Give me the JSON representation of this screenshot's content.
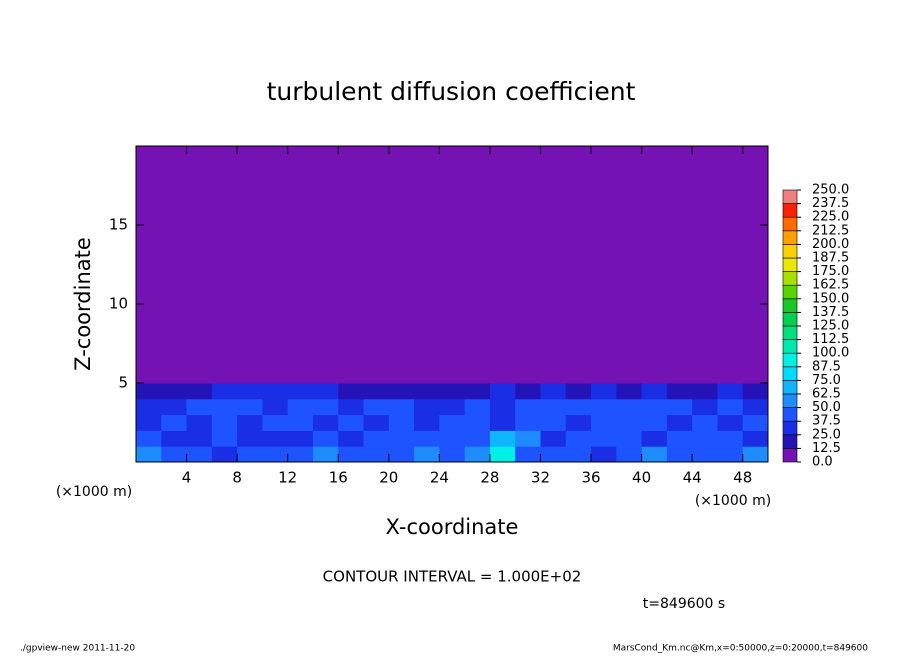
{
  "chart_data": {
    "type": "heatmap",
    "title": "turbulent diffusion coefficient",
    "x_label": "X-coordinate",
    "y_label": "Z-coordinate",
    "x_unit_labels": [
      "(×1000 m)",
      "(×1000 m)"
    ],
    "xlim": [
      0,
      50
    ],
    "ylim": [
      0,
      20
    ],
    "xticks": [
      4,
      8,
      12,
      16,
      20,
      24,
      28,
      32,
      36,
      40,
      44,
      48
    ],
    "yticks": [
      5,
      10,
      15
    ],
    "x": [
      1,
      3,
      5,
      7,
      9,
      11,
      13,
      15,
      17,
      19,
      21,
      23,
      25,
      27,
      29,
      31,
      33,
      35,
      37,
      39,
      41,
      43,
      45,
      47,
      49
    ],
    "y": [
      0.5,
      1.5,
      2.5,
      3.5,
      4.5,
      5.5
    ],
    "z": [
      [
        50,
        45,
        40,
        35,
        40,
        45,
        40,
        50,
        45,
        40,
        45,
        50,
        45,
        55,
        90,
        40,
        45,
        40,
        35,
        40,
        50,
        45,
        40,
        45,
        50
      ],
      [
        40,
        35,
        30,
        40,
        35,
        30,
        35,
        40,
        35,
        40,
        45,
        40,
        40,
        45,
        70,
        50,
        35,
        40,
        45,
        40,
        35,
        40,
        45,
        40,
        35
      ],
      [
        35,
        40,
        30,
        45,
        35,
        40,
        40,
        35,
        40,
        35,
        40,
        35,
        40,
        40,
        30,
        45,
        40,
        35,
        40,
        45,
        40,
        35,
        40,
        35,
        40
      ],
      [
        30,
        35,
        40,
        40,
        45,
        35,
        45,
        40,
        35,
        45,
        40,
        35,
        35,
        40,
        35,
        40,
        40,
        40,
        45,
        40,
        40,
        45,
        35,
        40,
        35
      ],
      [
        20,
        15,
        20,
        25,
        35,
        30,
        30,
        25,
        20,
        15,
        15,
        20,
        15,
        20,
        25,
        20,
        25,
        20,
        25,
        20,
        25,
        20,
        20,
        25,
        15
      ],
      [
        0,
        0,
        0,
        0,
        0,
        0,
        0,
        0,
        0,
        0,
        0,
        0,
        0,
        5,
        10,
        5,
        0,
        0,
        0,
        5,
        0,
        0,
        0,
        0,
        0
      ]
    ],
    "colorbar": {
      "levels": [
        {
          "value": 0,
          "label": "0.0"
        },
        {
          "value": 12.5,
          "label": "12.5"
        },
        {
          "value": 25,
          "label": "25.0"
        },
        {
          "value": 37.5,
          "label": "37.5"
        },
        {
          "value": 50,
          "label": "50.0"
        },
        {
          "value": 62.5,
          "label": "62.5"
        },
        {
          "value": 75,
          "label": "75.0"
        },
        {
          "value": 87.5,
          "label": "87.5"
        },
        {
          "value": 100,
          "label": "100.0"
        },
        {
          "value": 112.5,
          "label": "112.5"
        },
        {
          "value": 125,
          "label": "125.0"
        },
        {
          "value": 137.5,
          "label": "137.5"
        },
        {
          "value": 150,
          "label": "150.0"
        },
        {
          "value": 162.5,
          "label": "162.5"
        },
        {
          "value": 175,
          "label": "175.0"
        },
        {
          "value": 187.5,
          "label": "187.5"
        },
        {
          "value": 200,
          "label": "200.0"
        },
        {
          "value": 212.5,
          "label": "212.5"
        },
        {
          "value": 225,
          "label": "225.0"
        },
        {
          "value": 237.5,
          "label": "237.5"
        },
        {
          "value": 250,
          "label": "250.0"
        }
      ],
      "colors": [
        "#7412b4",
        "#2414b8",
        "#1a2ee6",
        "#1e54ff",
        "#1e8cff",
        "#10b4ff",
        "#00dcff",
        "#00f0e6",
        "#00e8b0",
        "#00e080",
        "#00d050",
        "#18c828",
        "#58d400",
        "#a8e000",
        "#e8e800",
        "#ffd000",
        "#ffa000",
        "#ff6a00",
        "#ff2000",
        "#f08080"
      ]
    },
    "contour_interval_text": "CONTOUR INTERVAL = 1.000E+02",
    "time_label": "t=849600 s",
    "footer_left": "./gpview-new  2011-11-20",
    "footer_right": "MarsCond_Km.nc@Km,x=0:50000,z=0:20000,t=849600"
  }
}
